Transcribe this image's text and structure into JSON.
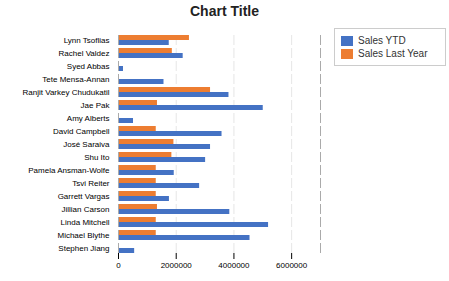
{
  "chart_data": {
    "type": "bar",
    "orientation": "horizontal",
    "title": "Chart Title",
    "categories": [
      "Lynn Tsoflias",
      "Rachel Valdez",
      "Syed Abbas",
      "Tete Mensa-Annan",
      "Ranjit Varkey Chudukatil",
      "Jae Pak",
      "Amy Alberts",
      "David Campbell",
      "José Saraiva",
      "Shu Ito",
      "Pamela Ansman-Wolfe",
      "Tsvi Reiter",
      "Garrett Vargas",
      "Jillian Carson",
      "Linda Mitchell",
      "Michael Blythe",
      "Stephen Jiang"
    ],
    "series": [
      {
        "name": "Sales YTD",
        "color": "#4472C4",
        "values": [
          1758385,
          2241204,
          172524,
          1576562,
          3827950,
          5015682,
          519905,
          3587378,
          3189356,
          3018725,
          1931620,
          2811013,
          1764938,
          3857163,
          5200475,
          4557045,
          559697
        ]
      },
      {
        "name": "Sales Last Year",
        "color": "#ED7D31",
        "values": [
          2458535,
          1865219,
          0,
          0,
          3189418,
          1350099,
          0,
          1307949,
          1920189,
          1849640,
          1307949,
          1307949,
          1307949,
          1350099,
          1307949,
          1307949,
          0
        ]
      }
    ],
    "xlim": [
      0,
      7000000
    ],
    "xticks": [
      0,
      2000000,
      4000000,
      6000000
    ],
    "grid": true,
    "legend": "right"
  }
}
